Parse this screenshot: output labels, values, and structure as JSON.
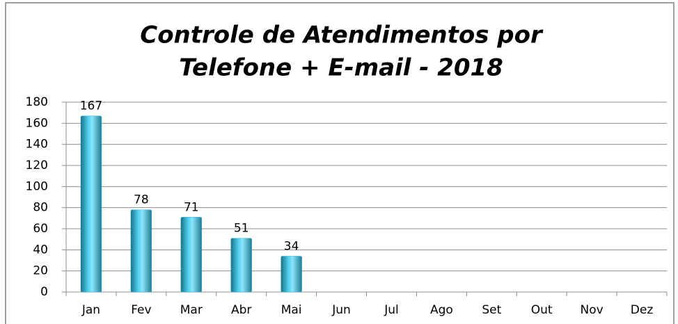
{
  "chart_data": {
    "type": "bar",
    "title": [
      "Controle de Atendimentos por",
      "Telefone + E-mail - 2018"
    ],
    "categories": [
      "Jan",
      "Fev",
      "Mar",
      "Abr",
      "Mai",
      "Jun",
      "Jul",
      "Ago",
      "Set",
      "Out",
      "Nov",
      "Dez"
    ],
    "values": [
      167,
      78,
      71,
      51,
      34,
      null,
      null,
      null,
      null,
      null,
      null,
      null
    ],
    "color": "#31b6d8",
    "ylim": [
      0,
      180
    ],
    "yticks": [
      0,
      20,
      40,
      60,
      80,
      100,
      120,
      140,
      160,
      180
    ],
    "grid": true
  }
}
